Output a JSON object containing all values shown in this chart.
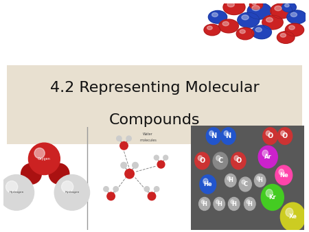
{
  "title_line1": "4.2 Representing Molecular",
  "title_line2": "Compounds",
  "title_fontsize": 16,
  "bg_color": "#ffffff",
  "banner_color": "#e8e0d0",
  "top_right_balls": [
    [
      5.5,
      8.5,
      0.9,
      "#cc2222"
    ],
    [
      7.5,
      9.2,
      1.0,
      "#2244bb"
    ],
    [
      9.2,
      8.8,
      1.0,
      "#cc2222"
    ],
    [
      6.8,
      7.5,
      0.9,
      "#2244bb"
    ],
    [
      8.8,
      7.2,
      0.85,
      "#cc2222"
    ],
    [
      5.0,
      7.2,
      0.8,
      "#cc2222"
    ],
    [
      9.5,
      6.0,
      0.85,
      "#2244bb"
    ],
    [
      7.2,
      6.2,
      1.0,
      "#cc2222"
    ],
    [
      5.8,
      6.0,
      0.75,
      "#2244bb"
    ],
    [
      8.5,
      9.8,
      0.7,
      "#cc2222"
    ],
    [
      6.0,
      9.0,
      0.75,
      "#2244bb"
    ]
  ],
  "elements_layout": [
    [
      "N",
      2.0,
      7.2,
      0.65,
      "#2255cc",
      "white",
      7
    ],
    [
      "N",
      3.3,
      7.2,
      0.65,
      "#2255cc",
      "white",
      7
    ],
    [
      "O",
      7.0,
      7.2,
      0.65,
      "#cc3333",
      "white",
      7
    ],
    [
      "O",
      8.3,
      7.2,
      0.65,
      "#cc3333",
      "white",
      7
    ],
    [
      "O",
      1.0,
      5.3,
      0.65,
      "#cc3333",
      "white",
      7
    ],
    [
      "C",
      2.6,
      5.3,
      0.65,
      "#888888",
      "white",
      7
    ],
    [
      "O",
      4.2,
      5.3,
      0.65,
      "#cc3333",
      "white",
      7
    ],
    [
      "Ar",
      6.8,
      5.6,
      0.85,
      "#cc22cc",
      "white",
      6
    ],
    [
      "Ne",
      8.2,
      4.2,
      0.75,
      "#ff44aa",
      "white",
      6
    ],
    [
      "He",
      1.5,
      3.5,
      0.72,
      "#2255cc",
      "white",
      6
    ],
    [
      "H",
      3.5,
      3.8,
      0.5,
      "#aaaaaa",
      "white",
      6
    ],
    [
      "C",
      4.8,
      3.5,
      0.55,
      "#aaaaaa",
      "white",
      6
    ],
    [
      "H",
      6.1,
      3.8,
      0.5,
      "#aaaaaa",
      "white",
      6
    ],
    [
      "H",
      1.2,
      2.0,
      0.5,
      "#aaaaaa",
      "white",
      6
    ],
    [
      "H",
      2.5,
      2.0,
      0.5,
      "#aaaaaa",
      "white",
      6
    ],
    [
      "H",
      3.8,
      2.0,
      0.5,
      "#aaaaaa",
      "white",
      6
    ],
    [
      "H",
      5.2,
      2.0,
      0.5,
      "#aaaaaa",
      "white",
      6
    ],
    [
      "Kr",
      7.2,
      2.5,
      1.0,
      "#44cc22",
      "white",
      6
    ],
    [
      "Xe",
      9.0,
      1.0,
      1.1,
      "#cccc22",
      "white",
      6
    ]
  ]
}
